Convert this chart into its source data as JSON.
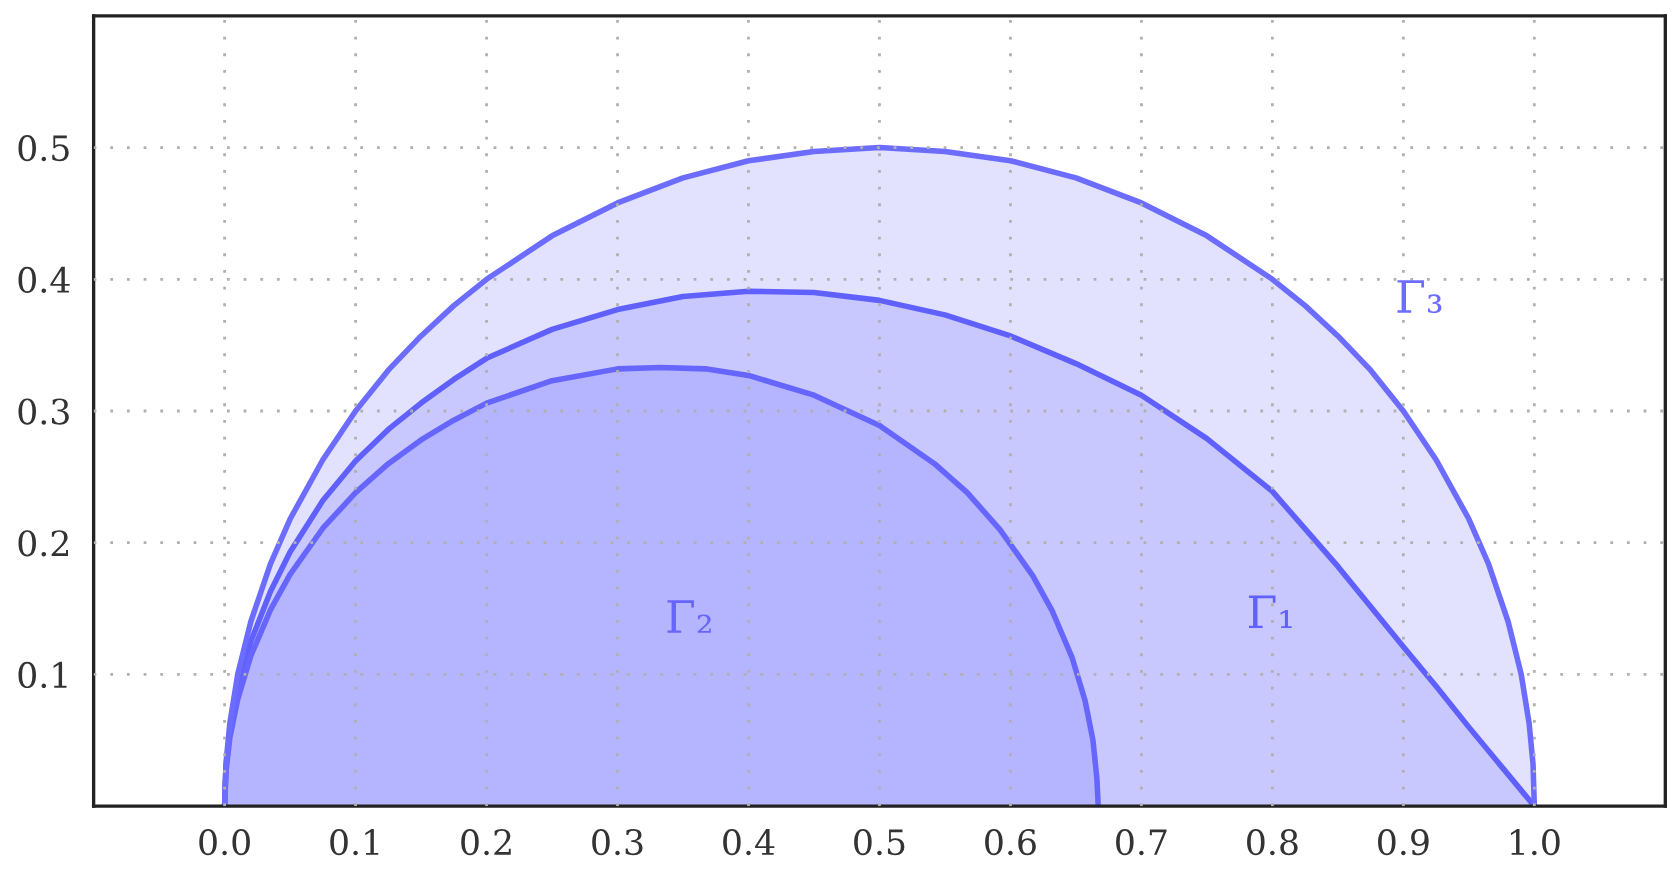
{
  "chart_data": {
    "type": "area",
    "xlim": [
      -0.1,
      1.1
    ],
    "ylim": [
      0,
      0.6
    ],
    "xticks": [
      {
        "value": 0,
        "label": "0.0"
      },
      0.1,
      0.2,
      0.3,
      0.4,
      0.5,
      0.6,
      0.7,
      0.8,
      0.9,
      {
        "value": 1,
        "label": "1.0"
      }
    ],
    "yticks": [
      0.1,
      0.2,
      0.3,
      0.4,
      0.5
    ],
    "grid": true,
    "series": [
      {
        "name": "Γ₁",
        "color": "#6060ff",
        "x": [
          0,
          0.001,
          0.004,
          0.01,
          0.02,
          0.035,
          0.05,
          0.075,
          0.1,
          0.125,
          0.15,
          0.175,
          0.2,
          0.25,
          0.3,
          0.35,
          0.4,
          0.45,
          0.5,
          0.55,
          0.6,
          0.65,
          0.7,
          0.75,
          0.8,
          0.85,
          0.9,
          0.925,
          0.95,
          0.975,
          1
        ],
        "values": [
          0,
          0.029,
          0.057,
          0.089,
          0.125,
          0.163,
          0.193,
          0.232,
          0.262,
          0.286,
          0.306,
          0.324,
          0.34,
          0.362,
          0.377,
          0.387,
          0.391,
          0.39,
          0.384,
          0.373,
          0.357,
          0.336,
          0.312,
          0.279,
          0.239,
          0.182,
          0.121,
          0.091,
          0.06,
          0.03,
          0
        ]
      },
      {
        "name": "Γ₂",
        "color": "#6666ff",
        "x": [
          0,
          0.001,
          0.004,
          0.01,
          0.02,
          0.035,
          0.05,
          0.075,
          0.1,
          0.125,
          0.15,
          0.175,
          0.2,
          0.25,
          0.3,
          0.333,
          0.367,
          0.4,
          0.45,
          0.5,
          0.542,
          0.567,
          0.592,
          0.617,
          0.632,
          0.647,
          0.657,
          0.663,
          0.666,
          0.667
        ],
        "values": [
          0,
          0.026,
          0.052,
          0.081,
          0.114,
          0.149,
          0.176,
          0.211,
          0.238,
          0.26,
          0.278,
          0.293,
          0.306,
          0.323,
          0.332,
          0.333,
          0.332,
          0.327,
          0.312,
          0.289,
          0.26,
          0.238,
          0.21,
          0.175,
          0.148,
          0.113,
          0.08,
          0.05,
          0.021,
          0
        ]
      },
      {
        "name": "Γ₃",
        "color": "#6c6cff",
        "x": [
          0,
          0.001,
          0.004,
          0.01,
          0.02,
          0.035,
          0.05,
          0.075,
          0.1,
          0.125,
          0.15,
          0.175,
          0.2,
          0.25,
          0.3,
          0.35,
          0.4,
          0.45,
          0.5,
          0.55,
          0.6,
          0.65,
          0.7,
          0.75,
          0.8,
          0.825,
          0.85,
          0.875,
          0.9,
          0.925,
          0.95,
          0.965,
          0.98,
          0.99,
          0.996,
          0.999,
          1
        ],
        "values": [
          0,
          0.032,
          0.063,
          0.1,
          0.14,
          0.184,
          0.218,
          0.263,
          0.3,
          0.331,
          0.357,
          0.38,
          0.4,
          0.433,
          0.458,
          0.477,
          0.49,
          0.497,
          0.5,
          0.497,
          0.49,
          0.477,
          0.458,
          0.433,
          0.4,
          0.38,
          0.357,
          0.331,
          0.3,
          0.263,
          0.218,
          0.184,
          0.14,
          0.1,
          0.063,
          0.032,
          0
        ]
      }
    ]
  }
}
